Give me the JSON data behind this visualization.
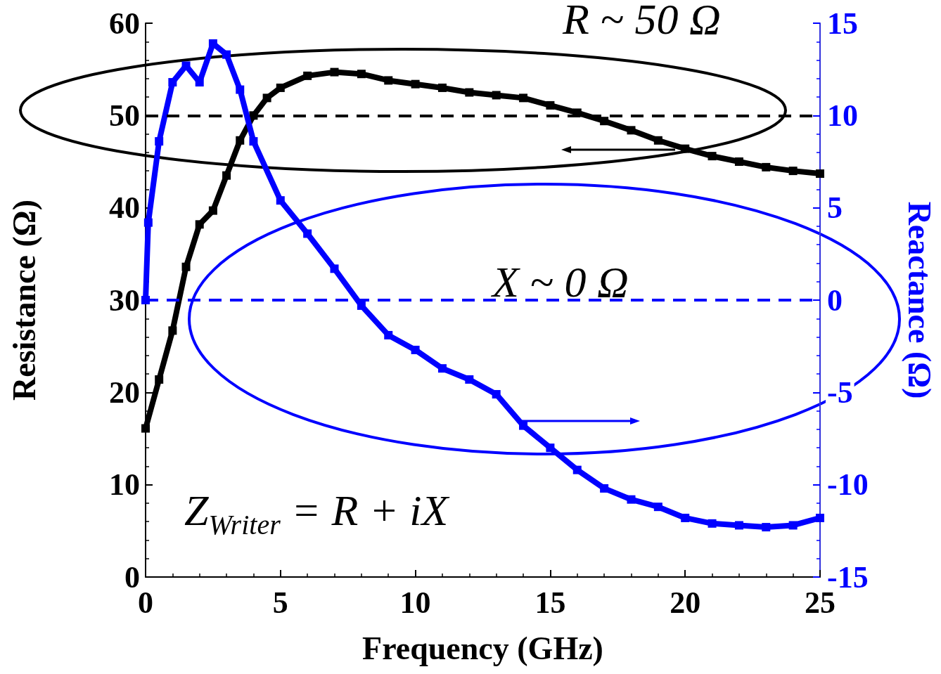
{
  "chart_data": {
    "type": "line",
    "xlabel": "Frequency (GHz)",
    "ylabel": "Resistance (Ω)",
    "y2label": "Reactance (Ω)",
    "xlim": [
      0,
      25
    ],
    "xticks": [
      0,
      5,
      10,
      15,
      20,
      25
    ],
    "ylim": [
      0,
      60
    ],
    "yticks": [
      0,
      10,
      20,
      30,
      40,
      50,
      60
    ],
    "y2lim": [
      -15,
      15
    ],
    "y2ticks": [
      -15,
      -10,
      -5,
      0,
      5,
      10,
      15
    ],
    "grid": false,
    "marker": "square",
    "line_style": "solid",
    "ref_lines": [
      {
        "axis": "y",
        "value": 50,
        "color": "#000000",
        "line_style": "dashed"
      },
      {
        "axis": "y2",
        "value": 0,
        "color": "#0000ff",
        "line_style": "dashed"
      }
    ],
    "annotations": [
      "R ~ 50 Ω",
      "X ~ 0 Ω",
      "Z$_{Writer}$ = R + iX"
    ],
    "series": [
      {
        "color": "#000000",
        "x": [
          0,
          0.5,
          1,
          1.5,
          2,
          2.5,
          3,
          3.5,
          4,
          4.5,
          5,
          6,
          7,
          8,
          9,
          10,
          11,
          12,
          13,
          14,
          15,
          16,
          17,
          18,
          19,
          20,
          21,
          22,
          23,
          24,
          25
        ],
        "values": [
          16.1,
          21.4,
          26.7,
          33.6,
          38.2,
          39.7,
          43.5,
          47.3,
          50,
          51.9,
          53,
          54.3,
          54.7,
          54.5,
          53.8,
          53.4,
          53,
          52.5,
          52.2,
          51.9,
          51.1,
          50.3,
          49.4,
          48.4,
          47.3,
          46.4,
          45.6,
          45,
          44.4,
          44,
          43.7
        ]
      },
      {
        "color": "#0000ff",
        "axis": "y2",
        "x": [
          0,
          0.1,
          0.5,
          1,
          1.5,
          2,
          2.5,
          3,
          3.5,
          4,
          5,
          6,
          7,
          8,
          9,
          10,
          11,
          12,
          13,
          14,
          15,
          16,
          17,
          18,
          19,
          20,
          21,
          22,
          23,
          24,
          25
        ],
        "values": [
          0,
          4.2,
          8.6,
          11.8,
          12.7,
          11.8,
          13.9,
          13.3,
          11.4,
          8.6,
          5.4,
          3.6,
          1.7,
          -0.3,
          -1.9,
          -2.7,
          -3.7,
          -4.3,
          -5.1,
          -6.8,
          -8,
          -9.2,
          -10.2,
          -10.8,
          -11.2,
          -11.8,
          -12.1,
          -12.2,
          -12.3,
          -12.2,
          -11.8
        ]
      }
    ]
  }
}
